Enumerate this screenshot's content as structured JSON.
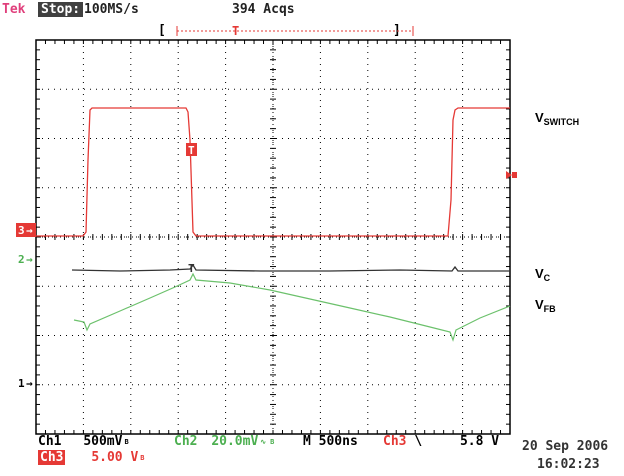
{
  "header": {
    "brand": "Tek",
    "run_state": "Stop:",
    "sample_rate": "100MS/s",
    "acquisitions": "394 Acqs"
  },
  "markers": {
    "ch3": "3",
    "ch2": "2",
    "ch1": "1",
    "trigger": "T"
  },
  "waveform_labels": {
    "vswitch_main": "V",
    "vswitch_sub": "SWITCH",
    "vc_main": "V",
    "vc_sub": "C",
    "vfb_main": "V",
    "vfb_sub": "FB"
  },
  "footer": {
    "ch1_label": "Ch1",
    "ch1_scale": "500mV",
    "bw_mark": "B",
    "ch2_label": "Ch2",
    "ch2_scale": "20.0mV",
    "timebase": "M 500ns",
    "trig_source": "Ch3",
    "trig_slope": "\\",
    "trig_level": "5.8 V",
    "ch3_label": "Ch3",
    "ch3_scale": "5.00 V",
    "date": "20 Sep 2006",
    "time": "16:02:23"
  },
  "colors": {
    "ch3": "#e53935",
    "ch2": "#5cb85c",
    "ch1": "#333333",
    "grid": "#000000"
  }
}
